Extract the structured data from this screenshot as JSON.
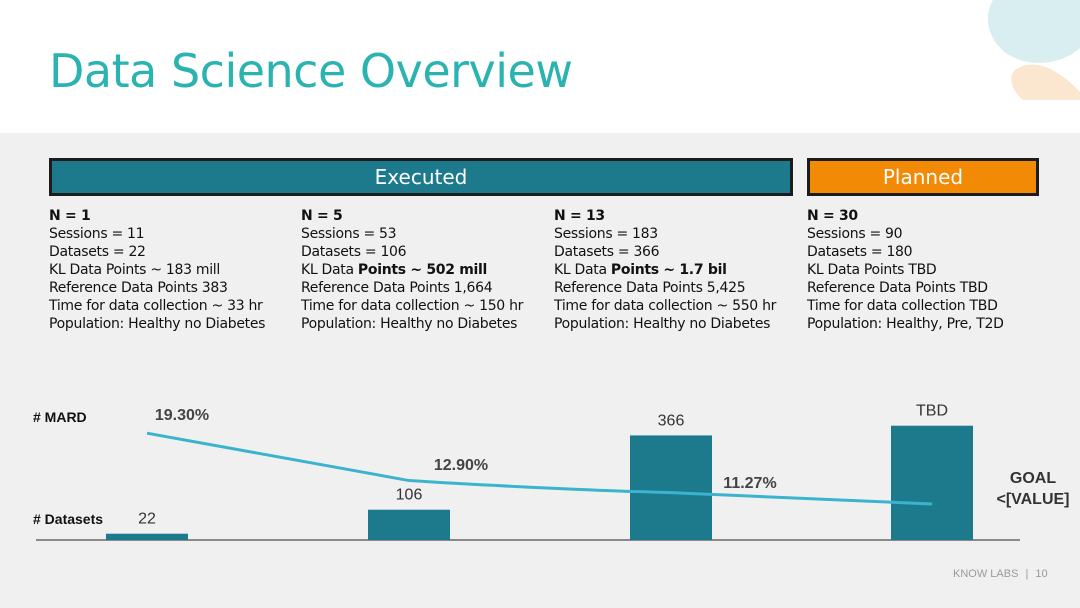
{
  "slide": {
    "title": "Data Science Overview",
    "footer": {
      "brand": "KNOW LABS",
      "separator": "|",
      "page": "10"
    }
  },
  "phases": {
    "executed": "Executed",
    "planned": "Planned"
  },
  "columns": [
    {
      "n": "N = 1",
      "sessions": "Sessions = 11",
      "datasets": "Datasets = 22",
      "kl_prefix": "KL Data Points ~ 183 mill",
      "kl_bold": "",
      "reference": "Reference Data Points 383",
      "time": "Time for data collection ~ 33 hr",
      "population": "Population: Healthy no Diabetes"
    },
    {
      "n": "N = 5",
      "sessions": "Sessions = 53",
      "datasets": "Datasets = 106",
      "kl_prefix": "KL Data ",
      "kl_bold": "Points ~ 502 mill",
      "reference": "Reference Data Points 1,664",
      "time": "Time for data collection ~ 150 hr",
      "population": "Population: Healthy no Diabetes"
    },
    {
      "n": "N = 13",
      "sessions": "Sessions = 183",
      "datasets": "Datasets = 366",
      "kl_prefix": "KL Data ",
      "kl_bold": "Points ~ 1.7 bil",
      "reference": "Reference Data Points 5,425",
      "time": "Time for data collection ~ 550 hr",
      "population": "Population: Healthy no Diabetes"
    },
    {
      "n": "N = 30",
      "sessions": "Sessions = 90",
      "datasets": "Datasets = 180",
      "kl_prefix": "KL Data Points TBD",
      "kl_bold": "",
      "reference": "Reference Data Points TBD",
      "time": "Time for data collection TBD",
      "population": "Population: Healthy, Pre, T2D"
    }
  ],
  "chart_data": {
    "type": "bar",
    "categories": [
      "N = 1",
      "N = 5",
      "N = 13",
      "N = 30"
    ],
    "series": [
      {
        "name": "# Datasets",
        "values": [
          22,
          106,
          366,
          null
        ],
        "labels": [
          "22",
          "106",
          "366",
          "TBD"
        ],
        "display_value_for_tbd": 400
      },
      {
        "name": "# MARD",
        "type": "line",
        "values": [
          19.3,
          12.9,
          11.27,
          null
        ],
        "labels": [
          "19.30%",
          "12.90%",
          "11.27%",
          ""
        ]
      }
    ],
    "row_labels": {
      "mard": "# MARD",
      "datasets": "# Datasets"
    },
    "goal": {
      "line1": "GOAL",
      "line2": "<[VALUE]"
    },
    "colors": {
      "bar": "#1d7a8c",
      "line": "#3bb3cf"
    },
    "ylim": [
      0,
      420
    ]
  }
}
